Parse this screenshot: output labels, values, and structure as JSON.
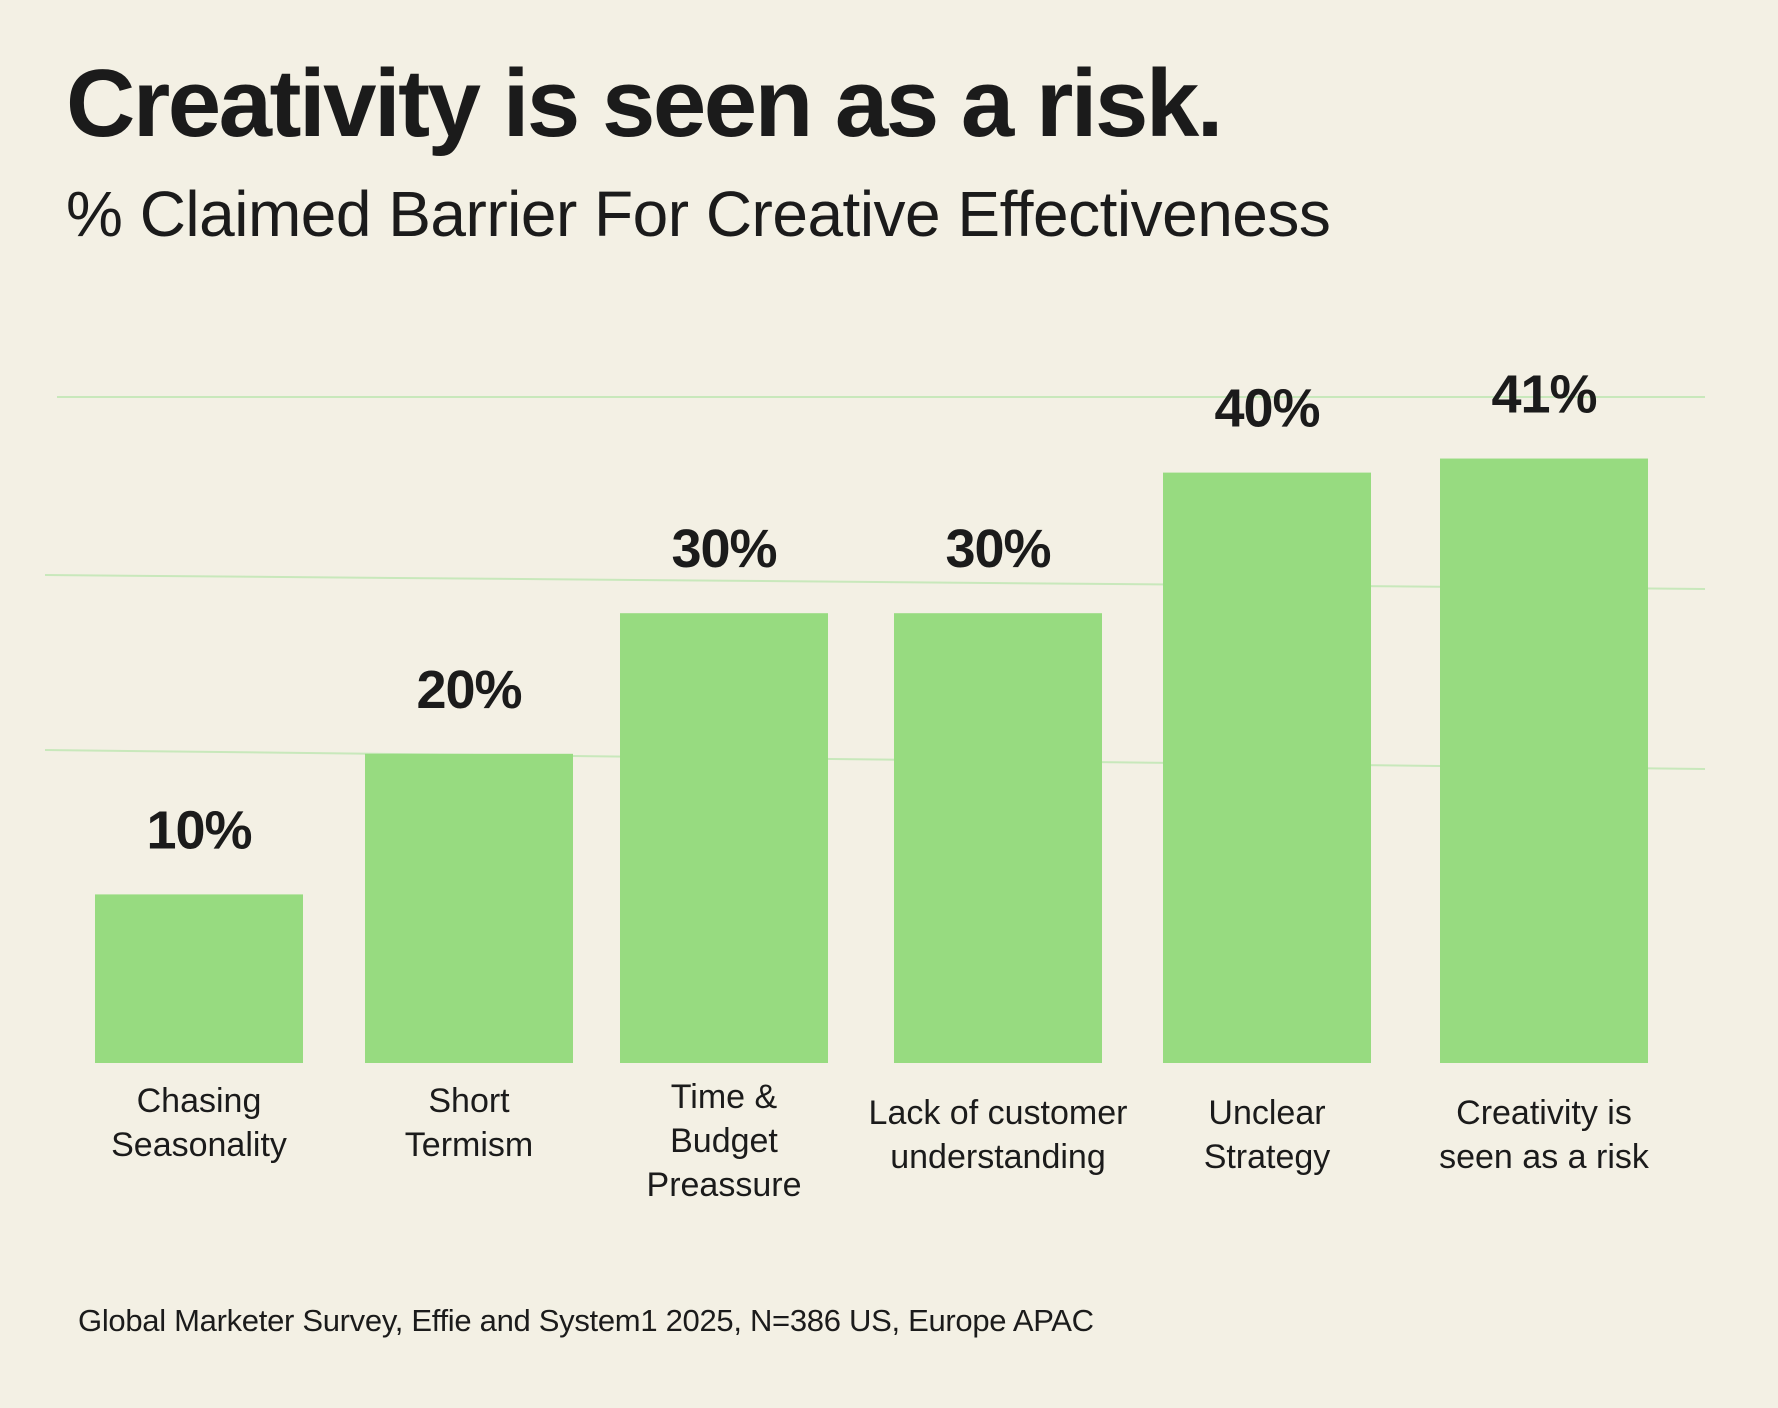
{
  "header": {
    "title": "Creativity is seen as a risk.",
    "subtitle": "% Claimed Barrier For Creative Effectiveness"
  },
  "footer": {
    "source": "Global Marketer Survey, Effie and System1 2025, N=386 US, Europe APAC"
  },
  "colors": {
    "background": "#f3f0e4",
    "bar": "#97db80",
    "gridline": "#c8e8bb",
    "text": "#1b1b1b"
  },
  "chart_data": {
    "type": "bar",
    "title": "Creativity is seen as a risk.",
    "subtitle": "% Claimed Barrier For Creative Effectiveness",
    "xlabel": "",
    "ylabel": "% Claimed Barrier",
    "categories": [
      [
        "Chasing",
        "Seasonality"
      ],
      [
        "Short",
        "Termism"
      ],
      [
        "Time &",
        "Budget",
        "Preassure"
      ],
      [
        "Lack of customer",
        "understanding"
      ],
      [
        "Unclear",
        "Strategy"
      ],
      [
        "Creativity is",
        "seen as a risk"
      ]
    ],
    "category_names": [
      "Chasing Seasonality",
      "Short Termism",
      "Time & Budget Preassure",
      "Lack of customer understanding",
      "Unclear Strategy",
      "Creativity is seen as a risk"
    ],
    "values": [
      10,
      20,
      30,
      30,
      40,
      41
    ],
    "value_labels": [
      "10%",
      "20%",
      "30%",
      "30%",
      "40%",
      "41%"
    ],
    "unit": "%",
    "gridlines": [
      20,
      30,
      45
    ],
    "grid": true,
    "legend": "none",
    "ylim": [
      0,
      45
    ]
  }
}
